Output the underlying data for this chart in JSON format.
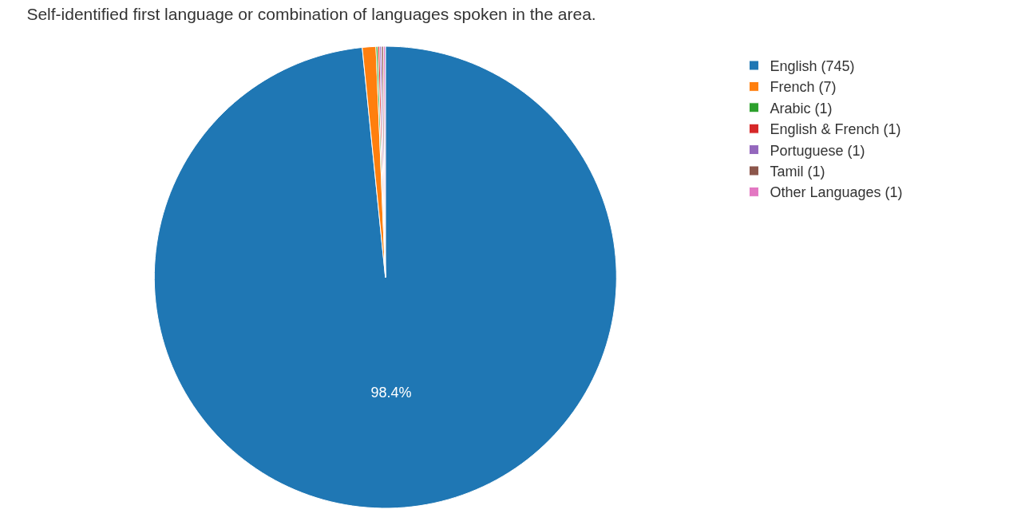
{
  "chart_data": {
    "type": "pie",
    "title": "Self-identified first language or combination of languages spoken in the area.",
    "categories": [
      "English (745)",
      "French (7)",
      "Arabic (1)",
      "English & French (1)",
      "Portuguese (1)",
      "Tamil (1)",
      "Other Languages (1)"
    ],
    "values": [
      98.4,
      0.95,
      0.13,
      0.13,
      0.13,
      0.13,
      0.13
    ],
    "colors": [
      "#1f77b4",
      "#ff7f0e",
      "#2ca02c",
      "#d62728",
      "#9467bd",
      "#8c564b",
      "#e377c2"
    ],
    "value_labels": [
      "98.4%",
      null,
      null,
      null,
      null,
      null,
      null
    ],
    "legend": "top right"
  }
}
